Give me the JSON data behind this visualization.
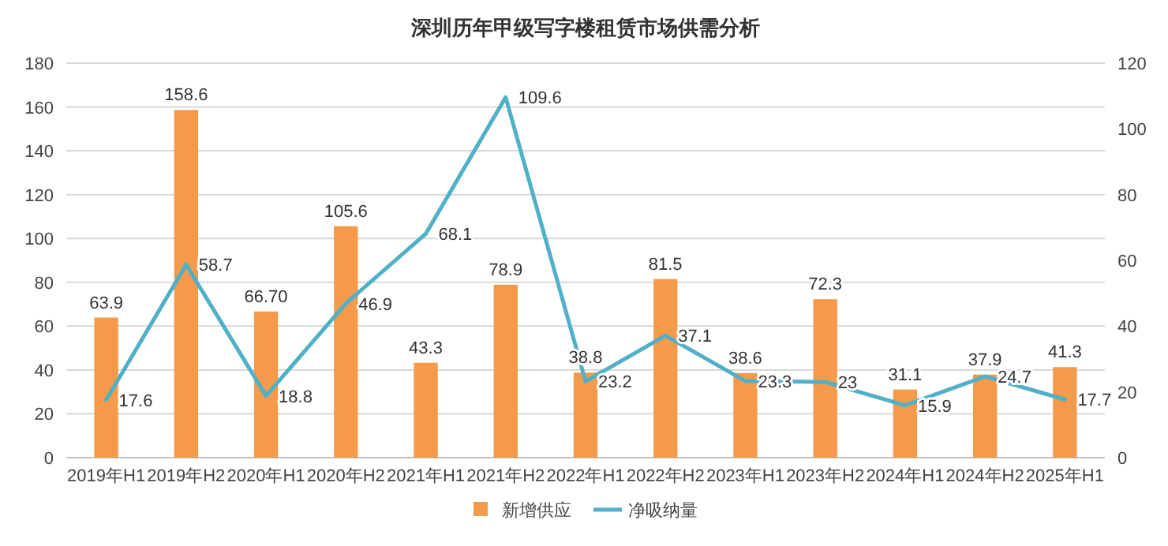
{
  "chart_data": {
    "type": "bar",
    "title": "深圳历年甲级写字楼租赁市场供需分析",
    "categories": [
      "2019年H1",
      "2019年H2",
      "2020年H1",
      "2020年H2",
      "2021年H1",
      "2021年H2",
      "2022年H1",
      "2022年H2",
      "2023年H1",
      "2023年H2",
      "2024年H1",
      "2024年H2",
      "2025年H1"
    ],
    "series": [
      {
        "name": "新增供应",
        "color": "#f59a4a",
        "values": [
          63.9,
          158.6,
          66.7,
          105.6,
          43.3,
          78.9,
          38.8,
          81.5,
          38.6,
          72.3,
          31.1,
          37.9,
          41.3
        ],
        "value_labels": [
          "63.9",
          "158.6",
          "66.70",
          "105.6",
          "43.3",
          "78.9",
          "38.8",
          "81.5",
          "38.6",
          "72.3",
          "31.1",
          "37.9",
          "41.3"
        ]
      },
      {
        "name": "净吸纳量",
        "type": "line",
        "axis": "y2",
        "color": "#4fb0c8",
        "values": [
          17.6,
          58.7,
          18.8,
          46.9,
          68.1,
          109.6,
          23.2,
          37.1,
          23.3,
          23,
          15.9,
          24.7,
          17.7
        ],
        "value_labels": [
          "17.6",
          "58.7",
          "18.8",
          "46.9",
          "68.1",
          "109.6",
          "23.2",
          "37.1",
          "23.3",
          "23",
          "15.9",
          "24.7",
          "17.7"
        ]
      }
    ],
    "ylim": [
      0,
      180
    ],
    "yticks": [
      0,
      20,
      40,
      60,
      80,
      100,
      120,
      140,
      160,
      180
    ],
    "y2lim": [
      0,
      120
    ],
    "y2ticks": [
      0,
      20,
      40,
      60,
      80,
      100,
      120
    ],
    "grid": "y",
    "legend": "bottom"
  }
}
